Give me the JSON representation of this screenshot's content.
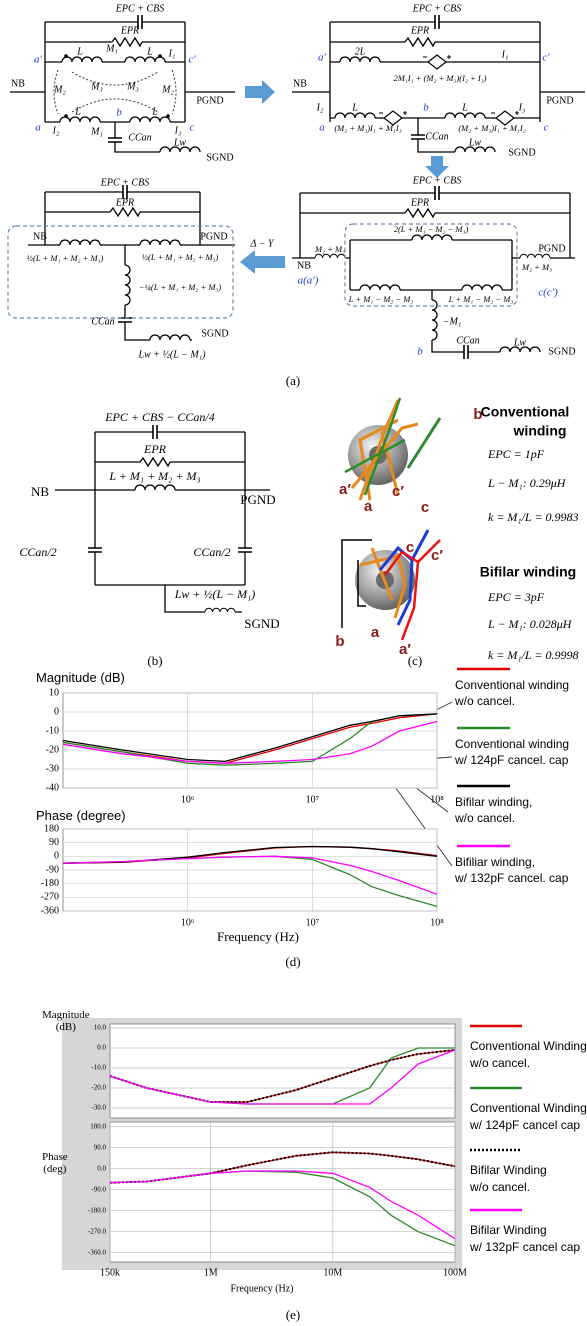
{
  "panel_a": {
    "texts": [
      "EPC + CBS",
      "EPR",
      "M₁",
      "L",
      "L",
      "I₁",
      "a′",
      "c′",
      "NB",
      "M₂",
      "M₃",
      "M₃",
      "M₂",
      "PGND",
      "a",
      "I₂",
      "L",
      "b",
      "L",
      "I₃",
      "c",
      "M₁",
      "CCan",
      "Lw",
      "SGND",
      "EPC + CBS",
      "EPR",
      "a′",
      "2L",
      "I₁",
      "c′",
      "2M₁I₁ + (M₂ + M₃)(I₂ + I₃)",
      "NB",
      "PGND",
      "I₂",
      "L",
      "b",
      "L",
      "I₃",
      "a",
      "(M₂ + M₃)I₁ + M₁I₃",
      "(M₂ + M₃)I₁ + M₁I₂",
      "c",
      "CCan",
      "Lw",
      "SGND",
      "EPC + CBS",
      "EPR",
      "2(L + M₁ − M₂ − M₃)",
      "NB",
      "M₂ + M₃",
      "PGND",
      "M₂ + M₃",
      "a(a′)",
      "L + M₁ − M₂ − M₃",
      "L + M₁ − M₂ − M₃",
      "c(c′)",
      "−M₁",
      "b",
      "CCan",
      "Lw",
      "SGND",
      "EPC + CBS",
      "EPR",
      "NB",
      "PGND",
      "½(L + M₁ + M₂ + M₃)",
      "½(L + M₁ + M₂ + M₃)",
      "−¼(L + M₁ + M₂ + M₃)",
      "CCan",
      "SGND",
      "Lw + ½(L − M₁)",
      "Δ − Y"
    ]
  },
  "panel_b": {
    "texts": [
      "EPC + CBS − CCan/4",
      "EPR",
      "NB",
      "L + M₁ + M₂ + M₃",
      "PGND",
      "CCan/2",
      "CCan/2",
      "Lw + ½(L − M₁)",
      "SGND"
    ]
  },
  "panel_c": {
    "texts": [
      "b",
      "a′",
      "a",
      "c′",
      "c",
      "Conventional",
      "winding",
      "EPC = 1pF",
      "L − M₁: 0.29μH",
      "k = M₁/L = 0.9983",
      "c",
      "c′",
      "Bifilar winding",
      "EPC = 3pF",
      "L − M₁: 0.028μH",
      "k = M₁/L = 0.9998",
      "b",
      "a",
      "a′"
    ]
  },
  "captions": [
    "(a)",
    "(b)",
    "(c)",
    "(d)",
    "(e)"
  ],
  "chart_data": [
    {
      "type": "line",
      "y_label": "Magnitude (dB)",
      "x_scale": "log",
      "grid": true,
      "x": [
        100000,
        300000,
        1000000,
        2000000,
        5000000,
        10000000,
        20000000,
        30000000,
        50000000,
        100000000
      ],
      "xlim": [
        100000,
        100000000
      ],
      "xticks": [
        {
          "value": 1000000,
          "label": "10⁶"
        },
        {
          "value": 10000000,
          "label": "10⁷"
        },
        {
          "value": 100000000,
          "label": "10⁸"
        }
      ],
      "ylim": [
        -40,
        10
      ],
      "yticks": [
        10,
        0,
        -10,
        -20,
        -30,
        -40
      ],
      "series": [
        {
          "name": "Conventional winding\nw/o cancel.",
          "color": "#e00000",
          "values": [
            -16,
            -21,
            -26,
            -27,
            -20,
            -14,
            -8,
            -6,
            -3,
            -1
          ]
        },
        {
          "name": "Conventional winding\nw/ 124pF cancel. cap",
          "color": "#2a8a2a",
          "values": [
            -16,
            -21,
            -27,
            -28,
            -27,
            -26,
            -14,
            -5,
            -2,
            -1
          ]
        },
        {
          "name": "Bifilar winding,\nw/o cancel.",
          "color": "#000000",
          "values": [
            -15,
            -20,
            -25,
            -26,
            -19,
            -13,
            -7,
            -5,
            -2,
            -1
          ]
        },
        {
          "name": "Bifiliar winding,\nw/ 132pF cancel. cap",
          "color": "#ff00ff",
          "values": [
            -17,
            -22,
            -26,
            -27,
            -26,
            -25,
            -22,
            -18,
            -10,
            -5
          ]
        }
      ]
    },
    {
      "type": "line",
      "y_label": "Phase (degree)",
      "x_label": "Frequency (Hz)",
      "x_scale": "log",
      "grid": true,
      "x": [
        100000,
        300000,
        1000000,
        2000000,
        5000000,
        10000000,
        20000000,
        30000000,
        50000000,
        100000000
      ],
      "xlim": [
        100000,
        100000000
      ],
      "xticks": [
        {
          "value": 1000000,
          "label": "10⁶"
        },
        {
          "value": 10000000,
          "label": "10⁷"
        },
        {
          "value": 100000000,
          "label": "10⁸"
        }
      ],
      "ylim": [
        -360,
        180
      ],
      "yticks": [
        180,
        90,
        0,
        -90,
        -180,
        -270,
        -360
      ],
      "series": [
        {
          "color": "#e00000",
          "values": [
            -45,
            -40,
            -10,
            20,
            55,
            65,
            60,
            50,
            35,
            5
          ]
        },
        {
          "color": "#2a8a2a",
          "values": [
            -45,
            -35,
            -15,
            -5,
            0,
            -20,
            -120,
            -200,
            -260,
            -330
          ]
        },
        {
          "color": "#000000",
          "values": [
            -45,
            -38,
            -5,
            25,
            58,
            65,
            60,
            50,
            30,
            0
          ]
        },
        {
          "color": "#ff00ff",
          "values": [
            -45,
            -35,
            -15,
            -5,
            0,
            -10,
            -60,
            -100,
            -160,
            -250
          ]
        }
      ]
    },
    {
      "type": "line",
      "y_label": "Magnitude\n(dB)",
      "x_scale": "log",
      "grid": true,
      "x": [
        150000,
        300000,
        1000000,
        2000000,
        5000000,
        10000000,
        20000000,
        30000000,
        50000000,
        100000000
      ],
      "xlim": [
        150000,
        100000000
      ],
      "ylim": [
        -35,
        12
      ],
      "yticks": [
        {
          "value": 10,
          "label": "10.0"
        },
        {
          "value": 0,
          "label": "0.0"
        },
        {
          "value": -10,
          "label": "-10.0"
        },
        {
          "value": -20,
          "label": "-20.0"
        },
        {
          "value": -30,
          "label": "-30.0"
        }
      ],
      "series": [
        {
          "name": "Conventional Winding\nw/o cancel.",
          "color": "#e00000",
          "values": [
            -14,
            -20,
            -27,
            -27,
            -21,
            -15,
            -9,
            -6,
            -3,
            -1
          ]
        },
        {
          "name": "Conventional Winding\nw/ 124pF cancel cap",
          "color": "#2a8a2a",
          "values": [
            -14,
            -20,
            -27,
            -28,
            -28,
            -28,
            -20,
            -5,
            0,
            0
          ]
        },
        {
          "name": "Bifilar Winding\nw/o cancel.",
          "color": "#000000",
          "dash": "dotted",
          "values": [
            -14,
            -20,
            -27,
            -27,
            -21,
            -15,
            -9,
            -6,
            -3,
            -1
          ]
        },
        {
          "name": "Bifilar Winding\nw/ 132pF cancel cap",
          "color": "#ff00ff",
          "values": [
            -14,
            -20,
            -27,
            -28,
            -28,
            -28,
            -28,
            -20,
            -8,
            -1
          ]
        }
      ]
    },
    {
      "type": "line",
      "y_label": "Phase\n(deg)",
      "x_label": "Frequency (Hz)",
      "x_scale": "log",
      "grid": true,
      "x": [
        150000,
        300000,
        1000000,
        2000000,
        5000000,
        10000000,
        20000000,
        30000000,
        50000000,
        100000000
      ],
      "xlim": [
        150000,
        100000000
      ],
      "xticks": [
        {
          "value": 150000,
          "label": "150k"
        },
        {
          "value": 1000000,
          "label": "1M"
        },
        {
          "value": 10000000,
          "label": "10M"
        },
        {
          "value": 100000000,
          "label": "100M"
        }
      ],
      "ylim": [
        -400,
        200
      ],
      "yticks": [
        {
          "value": 180,
          "label": "180.0"
        },
        {
          "value": 90,
          "label": "90.0"
        },
        {
          "value": 0,
          "label": "0.0"
        },
        {
          "value": -90,
          "label": "-90.0"
        },
        {
          "value": -180,
          "label": "-180.0"
        },
        {
          "value": -270,
          "label": "-270.0"
        },
        {
          "value": -360,
          "label": "-360.0"
        }
      ],
      "series": [
        {
          "color": "#e00000",
          "values": [
            -60,
            -55,
            -20,
            15,
            55,
            70,
            65,
            55,
            40,
            10
          ]
        },
        {
          "color": "#2a8a2a",
          "values": [
            -60,
            -55,
            -20,
            -10,
            -15,
            -40,
            -120,
            -200,
            -270,
            -330
          ]
        },
        {
          "color": "#000000",
          "dash": "dotted",
          "values": [
            -60,
            -55,
            -20,
            15,
            55,
            70,
            65,
            55,
            40,
            10
          ]
        },
        {
          "color": "#ff00ff",
          "values": [
            -60,
            -55,
            -20,
            -10,
            -10,
            -20,
            -80,
            -140,
            -200,
            -300
          ]
        }
      ]
    }
  ]
}
